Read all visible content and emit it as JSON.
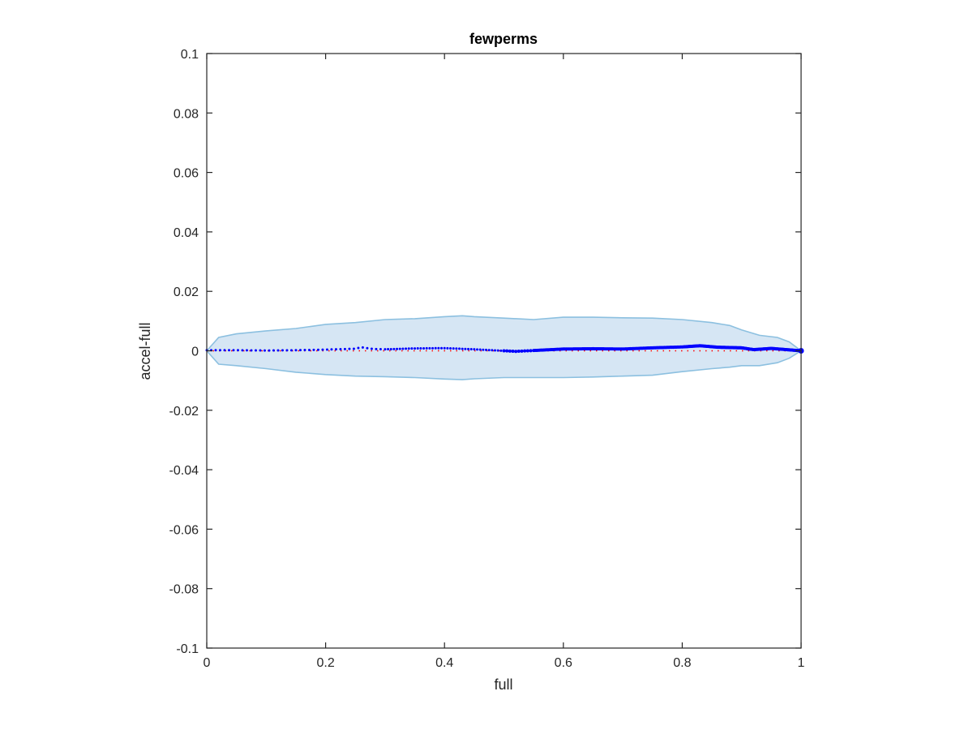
{
  "chart_data": {
    "type": "line",
    "title": "fewperms",
    "xlabel": "full",
    "ylabel": "accel-full",
    "xlim": [
      0,
      1
    ],
    "ylim": [
      -0.1,
      0.1
    ],
    "xticks": [
      "0",
      "0.2",
      "0.4",
      "0.6",
      "0.8",
      "1"
    ],
    "yticks": [
      "-0.1",
      "-0.08",
      "-0.06",
      "-0.04",
      "-0.02",
      "0",
      "0.02",
      "0.04",
      "0.06",
      "0.08",
      "0.1"
    ],
    "grid": false,
    "colors": {
      "band_fill": "#d6e6f4",
      "band_edge": "#8cc0e0",
      "mean": "#0000ff",
      "reference": "#ff0000",
      "axis": "#262626"
    },
    "band": {
      "x": [
        0,
        0.02,
        0.05,
        0.1,
        0.15,
        0.2,
        0.25,
        0.3,
        0.35,
        0.4,
        0.43,
        0.45,
        0.5,
        0.55,
        0.6,
        0.65,
        0.7,
        0.75,
        0.8,
        0.85,
        0.88,
        0.9,
        0.93,
        0.96,
        0.98,
        1.0
      ],
      "upper": [
        0.0,
        0.0045,
        0.0057,
        0.0067,
        0.0075,
        0.0089,
        0.0095,
        0.0105,
        0.0108,
        0.0115,
        0.0118,
        0.0115,
        0.011,
        0.0105,
        0.0113,
        0.0113,
        0.0111,
        0.011,
        0.0105,
        0.0095,
        0.0085,
        0.007,
        0.0052,
        0.0045,
        0.003,
        0.0
      ],
      "lower": [
        0.0,
        -0.0045,
        -0.005,
        -0.006,
        -0.0072,
        -0.008,
        -0.0085,
        -0.0087,
        -0.009,
        -0.0095,
        -0.0097,
        -0.0094,
        -0.009,
        -0.009,
        -0.009,
        -0.0088,
        -0.0085,
        -0.0082,
        -0.007,
        -0.006,
        -0.0055,
        -0.005,
        -0.005,
        -0.004,
        -0.0025,
        0.0
      ]
    },
    "series": [
      {
        "x": [
          0,
          0.05,
          0.1,
          0.15,
          0.2,
          0.25,
          0.26,
          0.28,
          0.3,
          0.35,
          0.4,
          0.45,
          0.5,
          0.52,
          0.55,
          0.6,
          0.65,
          0.7,
          0.75,
          0.8,
          0.83,
          0.86,
          0.9,
          0.92,
          0.95,
          1.0
        ],
        "y": [
          0.0002,
          0.0002,
          0.0001,
          0.0002,
          0.0004,
          0.0007,
          0.0012,
          0.0006,
          0.0005,
          0.0008,
          0.0009,
          0.0005,
          0.0,
          -0.0002,
          0.0001,
          0.0006,
          0.0007,
          0.0006,
          0.001,
          0.0013,
          0.0017,
          0.0012,
          0.001,
          0.0004,
          0.0008,
          0.0
        ]
      },
      {
        "x": [
          0,
          1
        ],
        "y": [
          0,
          0
        ]
      }
    ]
  }
}
